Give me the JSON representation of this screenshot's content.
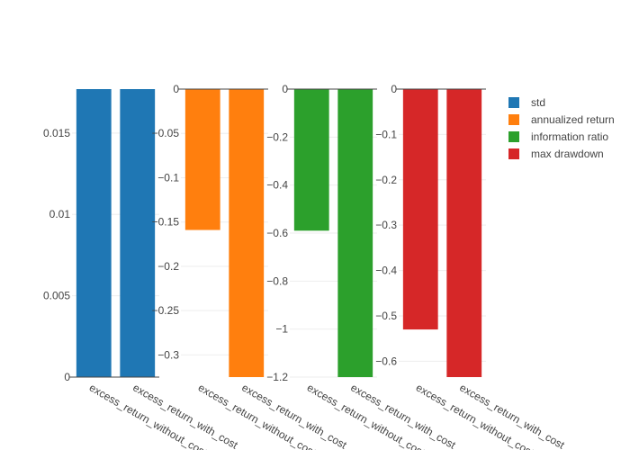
{
  "chart_data": [
    {
      "type": "bar",
      "name": "std",
      "color": "#1f77b4",
      "categories": [
        "excess_return_without_cost",
        "excess_return_with_cost"
      ],
      "values": [
        0.0177,
        0.0177
      ],
      "ylim": [
        0,
        0.0177
      ],
      "ticks": [
        0,
        0.005,
        0.01,
        0.015
      ],
      "tick_labels": [
        "0",
        "0.005",
        "0.01",
        "0.015"
      ]
    },
    {
      "type": "bar",
      "name": "annualized return",
      "color": "#ff7f0e",
      "categories": [
        "excess_return_without_cost",
        "excess_return_with_cost"
      ],
      "values": [
        -0.159,
        -0.325
      ],
      "ylim": [
        -0.325,
        0
      ],
      "ticks": [
        0,
        -0.05,
        -0.1,
        -0.15,
        -0.2,
        -0.25,
        -0.3
      ],
      "tick_labels": [
        "0",
        "−0.05",
        "−0.1",
        "−0.15",
        "−0.2",
        "−0.25",
        "−0.3"
      ]
    },
    {
      "type": "bar",
      "name": "information ratio",
      "color": "#2ca02c",
      "categories": [
        "excess_return_without_cost",
        "excess_return_with_cost"
      ],
      "values": [
        -0.59,
        -1.2
      ],
      "ylim": [
        -1.2,
        0
      ],
      "ticks": [
        0,
        -0.2,
        -0.4,
        -0.6,
        -0.8,
        -1,
        -1.2
      ],
      "tick_labels": [
        "0",
        "−0.2",
        "−0.4",
        "−0.6",
        "−0.8",
        "−1",
        "−1.2"
      ]
    },
    {
      "type": "bar",
      "name": "max drawdown",
      "color": "#d62728",
      "categories": [
        "excess_return_without_cost",
        "excess_return_with_cost"
      ],
      "values": [
        -0.53,
        -0.635
      ],
      "ylim": [
        -0.635,
        0
      ],
      "ticks": [
        0,
        -0.1,
        -0.2,
        -0.3,
        -0.4,
        -0.5,
        -0.6
      ],
      "tick_labels": [
        "0",
        "−0.1",
        "−0.2",
        "−0.3",
        "−0.4",
        "−0.5",
        "−0.6"
      ]
    }
  ],
  "legend": {
    "placement": "top-right",
    "items": [
      "std",
      "annualized return",
      "information ratio",
      "max drawdown"
    ]
  }
}
